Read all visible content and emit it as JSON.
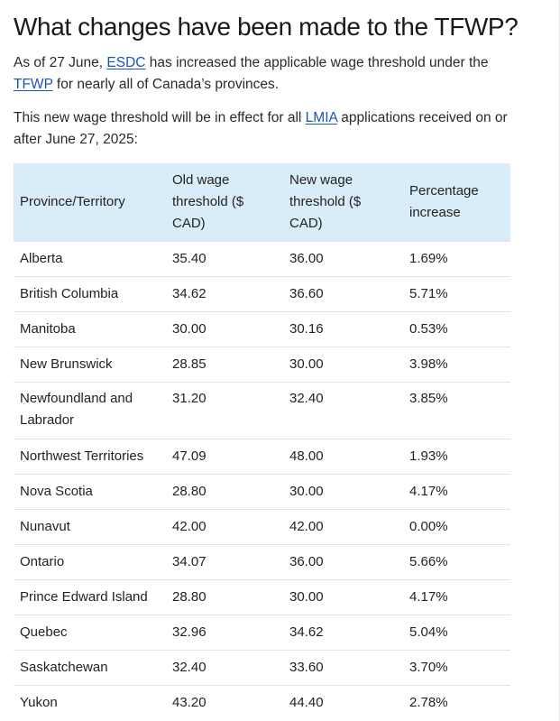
{
  "heading": "What changes have been made to the TFWP?",
  "para1": {
    "before": "As of 27 June, ",
    "link1": "ESDC",
    "middle": " has increased the applicable wage threshold under the ",
    "link2": "TFWP",
    "after": " for nearly all of Canada’s provinces."
  },
  "para2": {
    "before": "This new wage threshold will be in effect for all ",
    "link": "LMIA",
    "after": " applications received on or after June 27, 2025:"
  },
  "table": {
    "headers": [
      "Province/Territory",
      "Old wage threshold ($ CAD)",
      "New wage threshold ($ CAD)",
      "Percentage increase"
    ],
    "rows": [
      [
        "Alberta",
        "35.40",
        "36.00",
        "1.69%"
      ],
      [
        "British Columbia",
        "34.62",
        "36.60",
        "5.71%"
      ],
      [
        "Manitoba",
        "30.00",
        "30.16",
        "0.53%"
      ],
      [
        "New Brunswick",
        "28.85",
        "30.00",
        "3.98%"
      ],
      [
        "Newfoundland and Labrador",
        "31.20",
        "32.40",
        "3.85%"
      ],
      [
        "Northwest Territories",
        "47.09",
        "48.00",
        "1.93%"
      ],
      [
        "Nova Scotia",
        "28.80",
        "30.00",
        "4.17%"
      ],
      [
        "Nunavut",
        "42.00",
        "42.00",
        "0.00%"
      ],
      [
        "Ontario",
        "34.07",
        "36.00",
        "5.66%"
      ],
      [
        "Prince Edward Island",
        "28.80",
        "30.00",
        "4.17%"
      ],
      [
        "Quebec",
        "32.96",
        "34.62",
        "5.04%"
      ],
      [
        "Saskatchewan",
        "32.40",
        "33.60",
        "3.70%"
      ],
      [
        "Yukon",
        "43.20",
        "44.40",
        "2.78%"
      ]
    ]
  },
  "colors": {
    "header_bg": "#d9edf8",
    "link": "#1a55b5",
    "row_border": "#e3e3e3"
  }
}
